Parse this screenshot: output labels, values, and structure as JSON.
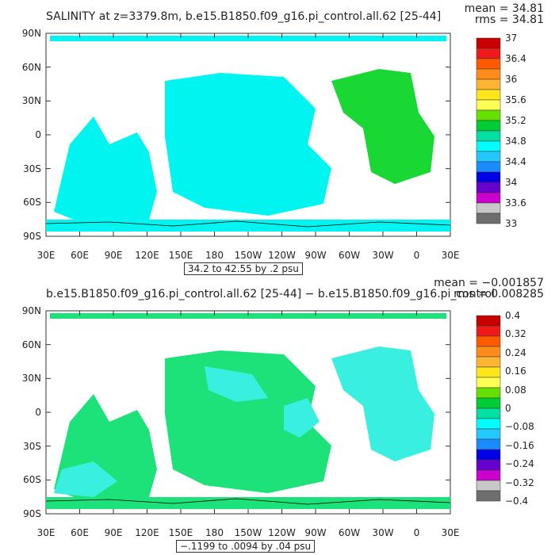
{
  "chart_data": [
    {
      "type": "heatmap",
      "title": "SALINITY at z=3379.8m, b.e15.B1850.f09_g16.pi_control.all.62 [25-44]",
      "mean_label": "mean = 34.81",
      "rms_label": "rms = 34.81",
      "contour_info": "34.2 to 42.55 by .2 psu",
      "xticks": [
        "30E",
        "60E",
        "90E",
        "120E",
        "150E",
        "180",
        "150W",
        "120W",
        "90W",
        "60W",
        "30W",
        "0",
        "30E"
      ],
      "yticks": [
        "90N",
        "60N",
        "30N",
        "0",
        "30S",
        "60S",
        "90S"
      ],
      "colorbar_labels": [
        "37",
        "36.4",
        "36",
        "35.6",
        "35.2",
        "34.8",
        "34.4",
        "34",
        "33.6",
        "33"
      ],
      "colorbar_colors": [
        "#c80000",
        "#ef1a1a",
        "#ff5a00",
        "#ff8c1a",
        "#ffb433",
        "#ffe61a",
        "#ffff55",
        "#66e000",
        "#00cc33",
        "#00e0a0",
        "#00ffff",
        "#22c8ff",
        "#1a8cff",
        "#0000e6",
        "#6600cc",
        "#cc00cc",
        "#c8c8c8",
        "#6e6e6e"
      ],
      "field_colors": {
        "background": "#00f5f0",
        "atlantic": "#19d833",
        "land": "#ffffff"
      }
    },
    {
      "type": "heatmap",
      "title": "b.e15.B1850.f09_g16.pi_control.all.62 [25-44] − b.e15.B1850.f09_g16.pi_control",
      "mean_label": "mean = −0.001857",
      "rms_label": "rms = 0.008285",
      "contour_info": "−.1199 to .0094 by .04 psu",
      "xticks": [
        "30E",
        "60E",
        "90E",
        "120E",
        "150E",
        "180",
        "150W",
        "120W",
        "90W",
        "60W",
        "30W",
        "0",
        "30E"
      ],
      "yticks": [
        "90N",
        "60N",
        "30N",
        "0",
        "30S",
        "60S",
        "90S"
      ],
      "colorbar_labels": [
        "0.4",
        "0.32",
        "0.24",
        "0.16",
        "0.08",
        "0",
        "−0.08",
        "−0.16",
        "−0.24",
        "−0.32",
        "−0.4"
      ],
      "colorbar_colors": [
        "#c80000",
        "#ef1a1a",
        "#ff5a00",
        "#ff8c1a",
        "#ffb433",
        "#ffe61a",
        "#ffff55",
        "#66e000",
        "#00cc33",
        "#00e0a0",
        "#00ffff",
        "#22c8ff",
        "#1a8cff",
        "#0000e6",
        "#6600cc",
        "#cc00cc",
        "#c8c8c8",
        "#6e6e6e"
      ],
      "field_colors": {
        "background": "#1de27a",
        "secondary": "#39f0e0",
        "land": "#ffffff"
      }
    }
  ]
}
